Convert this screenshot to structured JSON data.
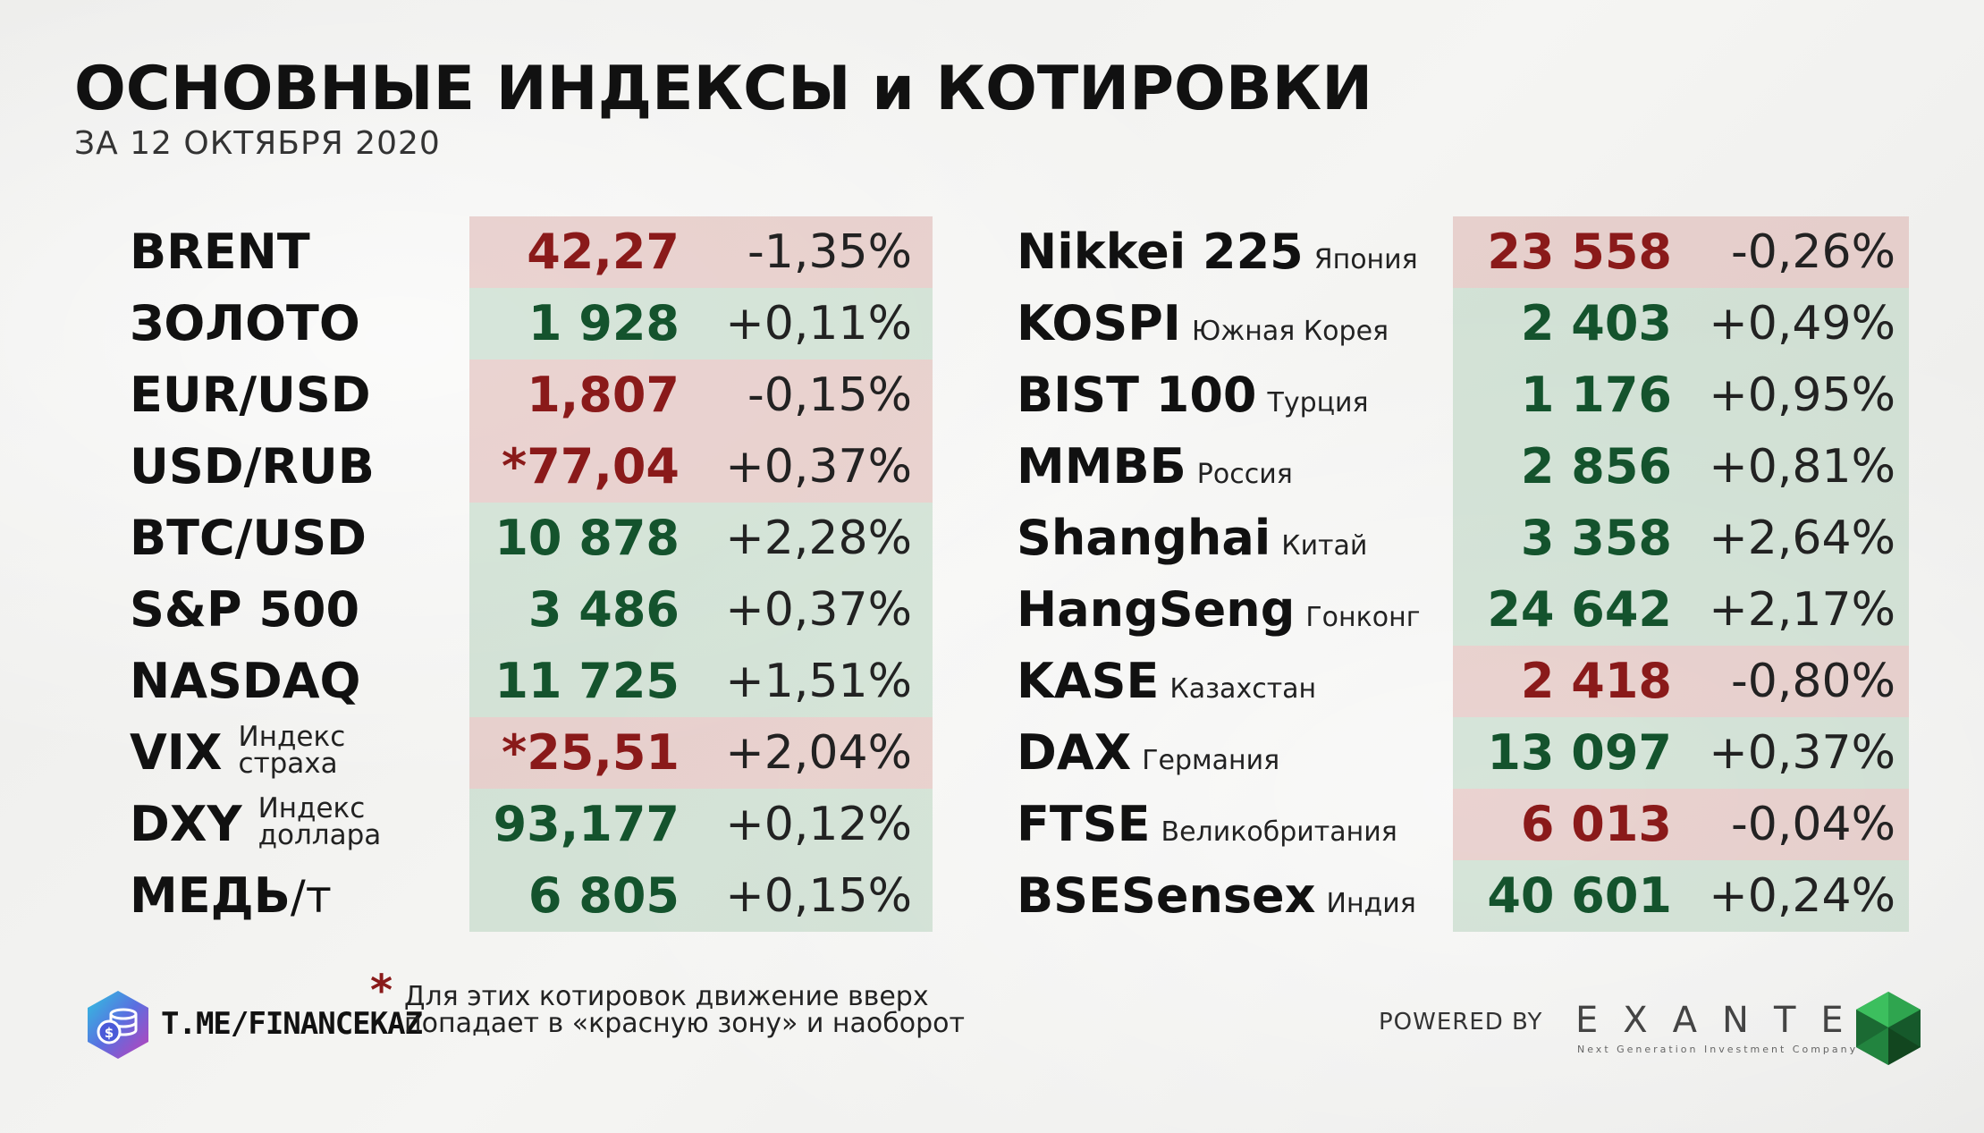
{
  "header": {
    "title": "ОСНОВНЫЕ ИНДЕКСЫ и КОТИРОВКИ",
    "subtitle": "ЗА 12 ОКТЯБРЯ 2020"
  },
  "left": [
    {
      "name": "BRENT",
      "value": "42,27",
      "change": "-1,35%",
      "zone": "red"
    },
    {
      "name": "ЗОЛОТО",
      "value": "1 928",
      "change": "+0,11%",
      "zone": "green"
    },
    {
      "name": "EUR/USD",
      "value": "1,807",
      "change": "-0,15%",
      "zone": "red"
    },
    {
      "name": "USD/RUB",
      "value": "*77,04",
      "change": "+0,37%",
      "zone": "red"
    },
    {
      "name": "BTC/USD",
      "value": "10 878",
      "change": "+2,28%",
      "zone": "green"
    },
    {
      "name": "S&P 500",
      "value": "3 486",
      "change": "+0,37%",
      "zone": "green"
    },
    {
      "name": "NASDAQ",
      "value": "11 725",
      "change": "+1,51%",
      "zone": "green"
    },
    {
      "name": "VIX",
      "sub_line1": "Индекс",
      "sub_line2": "страха",
      "value": "*25,51",
      "change": "+2,04%",
      "zone": "red"
    },
    {
      "name": "DXY",
      "sub_line1": "Индекс",
      "sub_line2": "доллара",
      "value": "93,177",
      "change": "+0,12%",
      "zone": "green"
    },
    {
      "name": "МЕДЬ",
      "unit": "/т",
      "value": "6 805",
      "change": "+0,15%",
      "zone": "green"
    }
  ],
  "right": [
    {
      "name": "Nikkei 225",
      "country": "Япония",
      "value": "23 558",
      "change": "-0,26%",
      "zone": "red"
    },
    {
      "name": "KOSPI",
      "country": "Южная Корея",
      "value": "2 403",
      "change": "+0,49%",
      "zone": "green"
    },
    {
      "name": "BIST 100",
      "country": "Турция",
      "value": "1 176",
      "change": "+0,95%",
      "zone": "green"
    },
    {
      "name": "ММВБ",
      "country": "Россия",
      "value": "2 856",
      "change": "+0,81%",
      "zone": "green"
    },
    {
      "name": "Shanghai",
      "country": "Китай",
      "value": "3 358",
      "change": "+2,64%",
      "zone": "green"
    },
    {
      "name": "HangSeng",
      "country": "Гонконг",
      "value": "24 642",
      "change": "+2,17%",
      "zone": "green"
    },
    {
      "name": "KASE",
      "country": "Казахстан",
      "value": "2 418",
      "change": "-0,80%",
      "zone": "red"
    },
    {
      "name": "DAX",
      "country": "Германия",
      "value": "13 097",
      "change": "+0,37%",
      "zone": "green"
    },
    {
      "name": "FTSE",
      "country": "Великобритания",
      "value": "6 013",
      "change": "-0,04%",
      "zone": "red"
    },
    {
      "name": "BSESensex",
      "country": "Индия",
      "value": "40 601",
      "change": "+0,24%",
      "zone": "green"
    }
  ],
  "footer": {
    "channel": "T.ME/FINANCEKAZ",
    "asterisk": "*",
    "note": "Для этих котировок движение вверх попадает в «красную зону» и наоборот",
    "powered_by": "POWERED BY",
    "brand": "EXANTE",
    "brand_tagline": "Next Generation Investment Company",
    "logo_icon": "coin-stack-icon",
    "brand_icon": "green-gem-icon"
  },
  "colors": {
    "red_value": "#8a1a1a",
    "green_value": "#14532d",
    "red_zone": "#e4c8c4",
    "green_zone": "#cfe0d3"
  }
}
